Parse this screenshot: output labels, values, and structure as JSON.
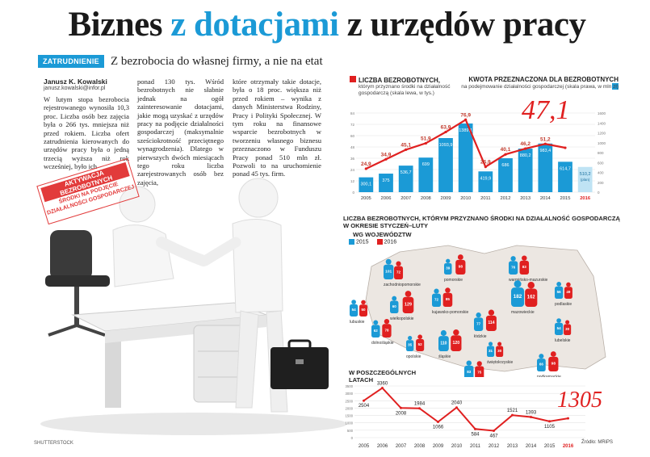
{
  "headline": {
    "part1": "Biznes ",
    "highlight": "z dotacjami",
    "part2": " z urzędów pracy"
  },
  "section_tag": "ZATRUDNIENIE",
  "subtitle": "Z bezrobocia do własnej firmy, a nie na etat",
  "author": "Janusz K. Kowalski",
  "email": "janusz.kowalski@infor.pl",
  "article": {
    "col1": "W lutym stopa bezrobocia rejestrowanego wynosiła 10,3 proc. Liczba osób bez zajęcia była o 266 tys. mniejsza niż przed rokiem. Liczba ofert zatrudnienia kierowanych do urzędów pracy była o jedną trzecią wyższa niż rok wcześniej, było ich",
    "col2": "ponad 130 tys. Wśród bezrobotnych nie słabnie jednak na ogół zainteresowanie dotacjami, jakie mogą uzyskać z urzędów pracy na podjęcie działalności gospodarczej (maksymalnie sześciokrotność przeciętnego wynagrodzenia). Dlatego w pierwszych dwóch miesiącach tego roku liczba zarejestrowanych osób bez zajęcia,",
    "col3": "które otrzymały takie dotacje, była o 18 proc. większa niż przed rokiem – wynika z danych Ministerstwa Rodziny, Pracy i Polityki Społecznej. W tym roku na finansowe wsparcie bezrobotnych w tworzeniu własnego biznesu przeznaczono w Funduszu Pracy ponad 510 mln zł. Pozwoli to na uruchomienie ponad 45 tys. firm."
  },
  "stamp": {
    "line1": "AKTYWACJA BEZROBOTNYCH",
    "line2": "ŚRODKI NA PODJĘCIE",
    "line3": "DZIAŁALNOŚCI GOSPODARCZEJ"
  },
  "photo_credit": "SHUTTERSTOCK",
  "top_chart": {
    "title_left": "LICZBA BEZROBOTNYCH,",
    "desc_left": "którym przyznano środki na działalność gospodarczą (skala lewa, w tys.)",
    "title_right": "KWOTA PRZEZNACZONA DLA BEZROBOTNYCH",
    "desc_right": "na podejmowanie działalności gospodarczej (skala prawa, w mln zł)",
    "big_value": "47,1",
    "plan_label": "(plan)"
  },
  "map_section": {
    "title": "LICZBA BEZROBOTNYCH, KTÓRYM PRZYZNANO ŚRODKI NA DZIAŁALNOŚĆ GOSPODARCZĄ W OKRESIE STYCZEŃ–LUTY",
    "subtitle": "WG WOJEWÓDZTW",
    "legend": [
      "2015",
      "2016"
    ],
    "regions": [
      {
        "name": "pomorskie",
        "v2015": 39,
        "v2016": 98
      },
      {
        "name": "zachodniopomorskie",
        "v2015": 101,
        "v2016": 72
      },
      {
        "name": "warmińsko-mazurskie",
        "v2015": 76,
        "v2016": 83
      },
      {
        "name": "kujawsko-pomorskie",
        "v2015": 72,
        "v2016": 85
      },
      {
        "name": "lubuskie",
        "v2015": 54,
        "v2016": 50
      },
      {
        "name": "wielkopolskie",
        "v2015": 60,
        "v2016": 129
      },
      {
        "name": "mazowieckie",
        "v2015": 182,
        "v2016": 162
      },
      {
        "name": "podlaskie",
        "v2015": 56,
        "v2016": 49
      },
      {
        "name": "łódzkie",
        "v2015": 77,
        "v2016": 114
      },
      {
        "name": "dolnośląskie",
        "v2015": 62,
        "v2016": 78
      },
      {
        "name": "opolskie",
        "v2015": 35,
        "v2016": 52
      },
      {
        "name": "śląskie",
        "v2015": 110,
        "v2016": 120
      },
      {
        "name": "świętokrzyskie",
        "v2015": 31,
        "v2016": 30
      },
      {
        "name": "lubelskie",
        "v2015": 54,
        "v2016": 30
      },
      {
        "name": "małopolskie",
        "v2015": 83,
        "v2016": 75
      },
      {
        "name": "podkarpackie",
        "v2015": 66,
        "v2016": 98
      }
    ]
  },
  "bottom_chart": {
    "title_line1": "W POSZCZEGÓLNYCH",
    "title_line2": "LATACH",
    "big_value": "1305"
  },
  "source": "Źródło: MRiPS",
  "chart_data": [
    {
      "type": "bar",
      "title": "KWOTA PRZEZNACZONA DLA BEZROBOTNYCH",
      "ylabel": "mln zł",
      "categories": [
        "2005",
        "2006",
        "2007",
        "2008",
        "2009",
        "2010",
        "2011",
        "2012",
        "2013",
        "2014",
        "2015",
        "2016"
      ],
      "values": [
        300.1,
        375,
        536.7,
        699,
        1093.9,
        1389.1,
        419.9,
        686,
        880.2,
        983.4,
        614.7,
        510.2
      ],
      "value_labels": [
        "300,1",
        "375",
        "536,7",
        "699",
        "1093,9",
        "1389,1",
        "419,9",
        "686",
        "880,2",
        "983,4",
        "614,7",
        "510,2"
      ],
      "ylim": [
        0,
        1600
      ],
      "yticks": [
        0,
        200,
        400,
        600,
        800,
        1000,
        1200,
        1400,
        1600
      ],
      "color": "#1b9ad6"
    },
    {
      "type": "line",
      "title": "LICZBA BEZROBOTNYCH",
      "ylabel": "tys.",
      "categories": [
        "2005",
        "2006",
        "2007",
        "2008",
        "2009",
        "2010",
        "2011",
        "2012",
        "2013",
        "2014",
        "2015",
        "2016"
      ],
      "values": [
        24.9,
        34.9,
        45.1,
        51.9,
        63.9,
        76.9,
        26.9,
        40.1,
        46.2,
        51.2,
        47.1,
        null
      ],
      "value_labels": [
        "24,9",
        "34,9",
        "45,1",
        "51,9",
        "63,9",
        "76,9",
        "26,9",
        "40,1",
        "46,2",
        "51,2",
        "",
        ""
      ],
      "ylim": [
        0,
        84
      ],
      "yticks": [
        0,
        12,
        24,
        36,
        48,
        60,
        72,
        84
      ],
      "color": "#e02020"
    },
    {
      "type": "line",
      "title": "W POSZCZEGÓLNYCH LATACH",
      "categories": [
        "2005",
        "2006",
        "2007",
        "2008",
        "2009",
        "2010",
        "2011",
        "2012",
        "2013",
        "2014",
        "2015",
        "2016"
      ],
      "values": [
        2504,
        3360,
        2008,
        1984,
        1066,
        2040,
        584,
        467,
        1521,
        1393,
        1105,
        1305
      ],
      "value_labels": [
        "2504",
        "3360",
        "2008",
        "1984",
        "1066",
        "2040",
        "584",
        "467",
        "1521",
        "1393",
        "1105",
        ""
      ],
      "ylim": [
        0,
        3500
      ],
      "yticks": [
        0,
        500,
        1000,
        1500,
        2000,
        2500,
        3000,
        3500
      ],
      "color": "#e02020"
    }
  ]
}
